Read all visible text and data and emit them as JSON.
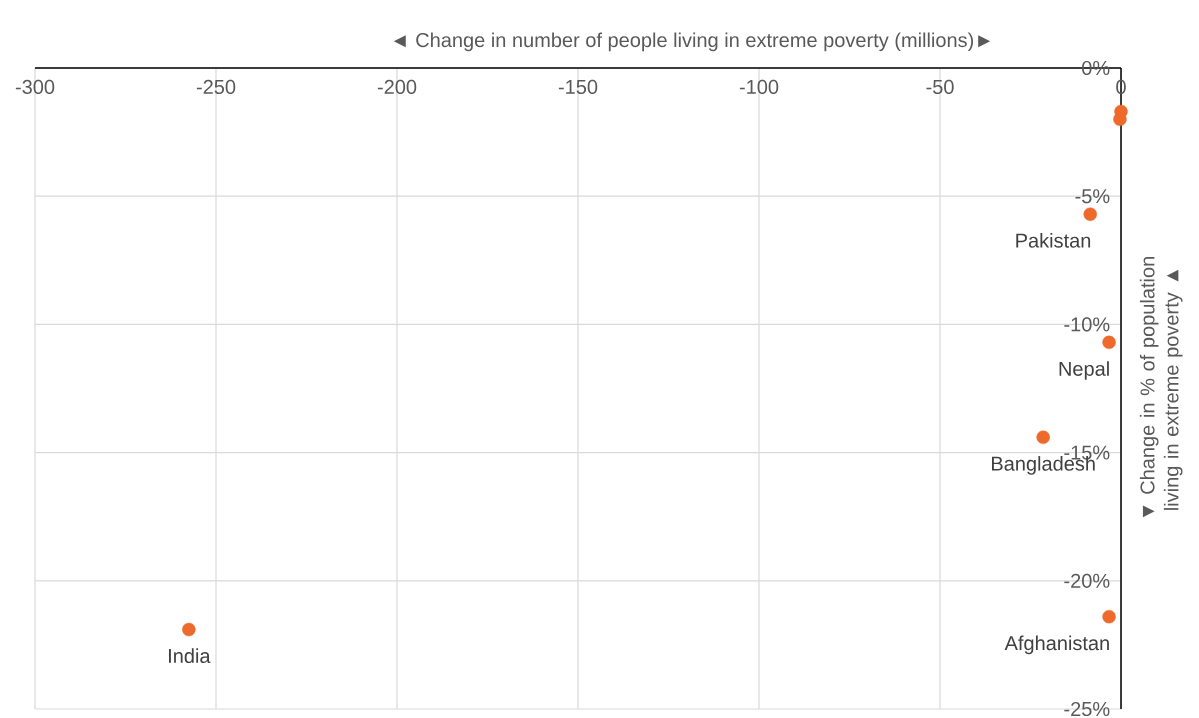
{
  "chart_data": {
    "type": "scatter",
    "xlabel": "◄ Change in number of people living in extreme poverty (millions)►",
    "ylabel": "▼ Change in % of population living in extreme poverty ▲",
    "x": [
      0,
      -0.3,
      -8.5,
      -3.3,
      -21.5,
      -257.5,
      -3.3
    ],
    "values": [
      -1.7,
      -2.0,
      -5.7,
      -10.7,
      -14.4,
      -21.9,
      -21.4
    ],
    "color": "#ed6a2c",
    "marker": "circle",
    "grid": true,
    "xlim": [
      -300,
      0
    ],
    "xticks": [
      -300,
      -250,
      -200,
      -150,
      -100,
      -50,
      0
    ],
    "ylim": [
      -25,
      0
    ],
    "yticks": [
      {
        "value": -25,
        "label": "-25%"
      },
      {
        "value": -20,
        "label": "-20%"
      },
      {
        "value": -15,
        "label": "-15%"
      },
      {
        "value": -10,
        "label": "-10%"
      },
      {
        "value": -5,
        "label": "-5%"
      },
      {
        "value": 0,
        "label": "0%"
      }
    ],
    "annotations": [
      {
        "text": "Pakistan",
        "x": -8.5,
        "y": -5.7
      },
      {
        "text": "Nepal",
        "x": -3.3,
        "y": -10.7
      },
      {
        "text": "Bangladesh",
        "x": -21.5,
        "y": -14.4
      },
      {
        "text": "India",
        "x": -257.5,
        "y": -21.9
      },
      {
        "text": "Afghanistan",
        "x": -3.3,
        "y": -21.4
      }
    ]
  }
}
